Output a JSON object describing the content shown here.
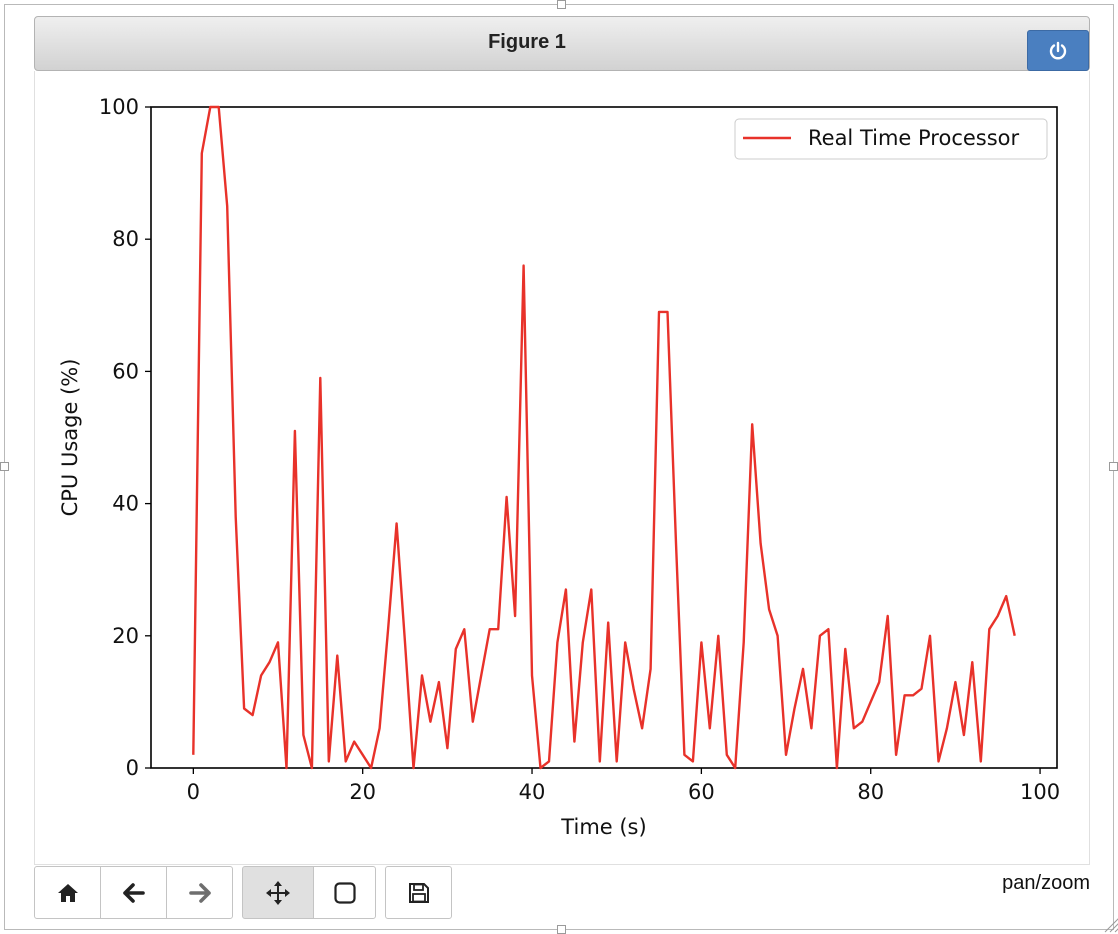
{
  "window": {
    "title": "Figure 1",
    "mode_label": "pan/zoom"
  },
  "toolbar": {
    "buttons": [
      {
        "name": "home-button",
        "icon": "home-icon"
      },
      {
        "name": "back-button",
        "icon": "arrow-left-icon"
      },
      {
        "name": "forward-button",
        "icon": "arrow-right-icon"
      },
      {
        "name": "pan-button",
        "icon": "move-icon",
        "active": true
      },
      {
        "name": "zoom-button",
        "icon": "square-icon"
      },
      {
        "name": "save-button",
        "icon": "floppy-disk-icon"
      }
    ]
  },
  "colors": {
    "line": "#e8322a",
    "accent": "#4a7fc0"
  },
  "chart_data": {
    "type": "line",
    "title": "",
    "xlabel": "Time (s)",
    "ylabel": "CPU Usage (%)",
    "xlim": [
      -5,
      102
    ],
    "ylim": [
      0,
      100
    ],
    "xticks": [
      0,
      20,
      40,
      60,
      80,
      100
    ],
    "yticks": [
      0,
      20,
      40,
      60,
      80,
      100
    ],
    "grid": false,
    "legend_position": "top-right",
    "series": [
      {
        "name": "Real Time Processor",
        "color": "#e8322a",
        "x": [
          0,
          1,
          2,
          3,
          4,
          5,
          6,
          7,
          8,
          9,
          10,
          11,
          12,
          13,
          14,
          15,
          16,
          17,
          18,
          19,
          20,
          21,
          22,
          23,
          24,
          25,
          26,
          27,
          28,
          29,
          30,
          31,
          32,
          33,
          34,
          35,
          36,
          37,
          38,
          39,
          40,
          41,
          42,
          43,
          44,
          45,
          46,
          47,
          48,
          49,
          50,
          51,
          52,
          53,
          54,
          55,
          56,
          57,
          58,
          59,
          60,
          61,
          62,
          63,
          64,
          65,
          66,
          67,
          68,
          69,
          70,
          71,
          72,
          73,
          74,
          75,
          76,
          77,
          78,
          79,
          80,
          81,
          82,
          83,
          84,
          85,
          86,
          87,
          88,
          89,
          90,
          91,
          92,
          93,
          94,
          95,
          96,
          97
        ],
        "y": [
          2,
          93,
          100,
          100,
          85,
          38,
          9,
          8,
          14,
          16,
          19,
          0,
          51,
          5,
          0,
          59,
          1,
          17,
          1,
          4,
          2,
          0,
          6,
          21,
          37,
          19,
          0,
          14,
          7,
          13,
          3,
          18,
          21,
          7,
          14,
          21,
          21,
          41,
          23,
          76,
          14,
          0,
          1,
          19,
          27,
          4,
          19,
          27,
          1,
          22,
          1,
          19,
          12,
          6,
          15,
          69,
          69,
          34,
          2,
          1,
          19,
          6,
          20,
          2,
          0,
          19,
          52,
          34,
          24,
          20,
          2,
          9,
          15,
          6,
          20,
          21,
          0,
          18,
          6,
          7,
          10,
          13,
          23,
          2,
          11,
          11,
          12,
          20,
          1,
          6,
          13,
          5,
          16,
          1,
          21,
          23,
          26,
          20
        ]
      }
    ]
  }
}
